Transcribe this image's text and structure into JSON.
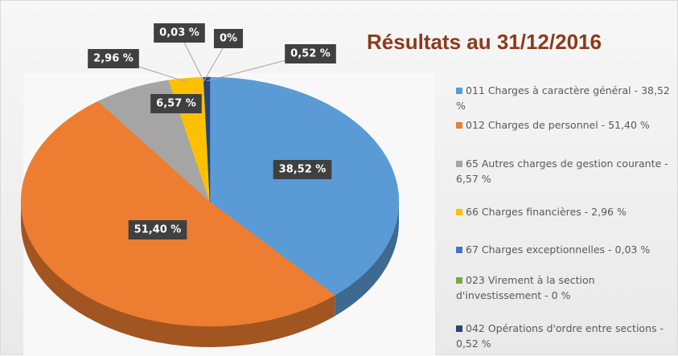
{
  "chart_data": {
    "type": "pie",
    "title": "Résultats au 31/12/2016",
    "categories": [
      "011 Charges à caractère général - 38,52 %",
      "012 Charges de personnel - 51,40 %",
      "65 Autres charges de gestion courante - 6,57 %",
      "66 Charges financières - 2,96 %",
      "67 Charges exceptionnelles - 0,03 %",
      "023 Virement à la section d'investissement - 0 %",
      "042 Opérations d'ordre entre sections - 0,52 %"
    ],
    "values": [
      38.52,
      51.4,
      6.57,
      2.96,
      0.03,
      0,
      0.52
    ],
    "value_labels": [
      "38,52 %",
      "51,40 %",
      "6,57 %",
      "2,96 %",
      "0,03 %",
      "0%",
      "0,52 %"
    ],
    "colors": [
      "#5b9bd5",
      "#ed7d31",
      "#a5a5a5",
      "#ffc000",
      "#4472c4",
      "#70ad47",
      "#264478"
    ],
    "legend": "right"
  }
}
